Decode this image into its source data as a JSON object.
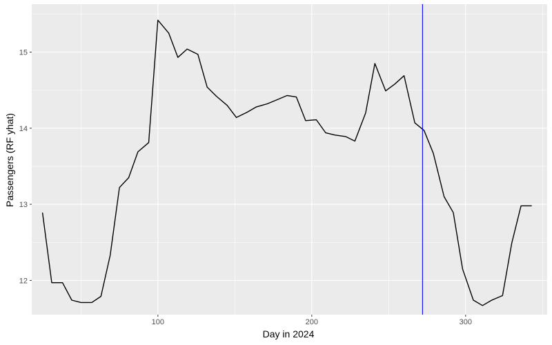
{
  "chart_data": {
    "type": "line",
    "title": "",
    "xlabel": "Day in 2024",
    "ylabel": "Passengers (RF yhat)",
    "xlim": [
      18,
      353
    ],
    "ylim": [
      11.55,
      15.63
    ],
    "x_ticks": [
      100,
      200,
      300
    ],
    "x_tick_labels": [
      "100",
      "200",
      "300"
    ],
    "y_ticks": [
      12,
      13,
      14,
      15
    ],
    "y_tick_labels": [
      "12",
      "13",
      "14",
      "15"
    ],
    "grid": true,
    "background": "#EBEBEB",
    "line_color": "#000000",
    "vline": {
      "x": 272,
      "color": "#0000FF"
    },
    "series": [
      {
        "x": [
          25,
          31,
          38,
          44,
          50,
          57,
          63,
          69,
          75,
          81,
          87,
          94,
          100,
          107,
          113,
          119,
          126,
          132,
          138,
          145,
          151,
          158,
          164,
          171,
          177,
          184,
          190,
          196,
          203,
          209,
          215,
          222,
          228,
          235,
          241,
          248,
          254,
          260,
          267,
          273,
          279,
          286,
          292,
          298,
          305,
          311,
          317,
          324,
          330,
          336,
          343
        ],
        "y": [
          12.89,
          11.97,
          11.97,
          11.74,
          11.71,
          11.71,
          11.79,
          12.33,
          13.22,
          13.35,
          13.69,
          13.81,
          15.42,
          15.25,
          14.93,
          15.04,
          14.97,
          14.54,
          14.42,
          14.3,
          14.14,
          14.21,
          14.28,
          14.32,
          14.37,
          14.43,
          14.41,
          14.1,
          14.11,
          13.94,
          13.91,
          13.89,
          13.83,
          14.2,
          14.85,
          14.49,
          14.58,
          14.69,
          14.07,
          13.97,
          13.67,
          13.1,
          12.89,
          12.15,
          11.74,
          11.67,
          11.74,
          11.8,
          12.49,
          12.98,
          12.98
        ]
      }
    ]
  }
}
